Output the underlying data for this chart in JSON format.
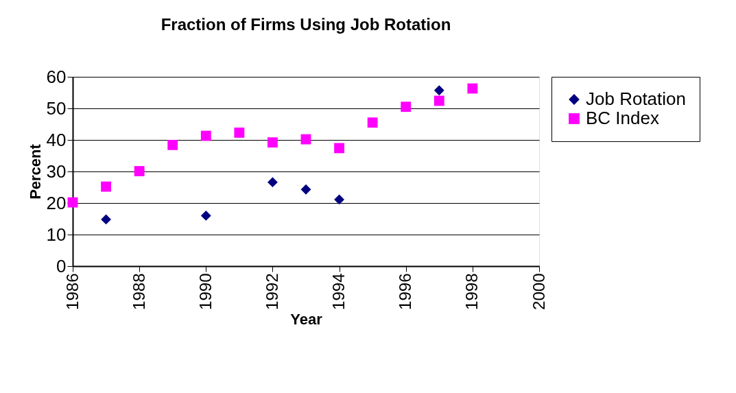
{
  "chart_data": {
    "type": "scatter",
    "title": "Fraction of Firms Using Job Rotation",
    "xlabel": "Year",
    "ylabel": "Percent",
    "series": [
      {
        "name": "Job Rotation",
        "color": "#000080",
        "marker": "diamond",
        "x": [
          1987,
          1990,
          1992,
          1993,
          1994,
          1997
        ],
        "values": [
          14.8,
          16.0,
          26.6,
          24.3,
          21.1,
          55.7
        ]
      },
      {
        "name": "BC Index",
        "color": "#ff00ff",
        "marker": "square",
        "x": [
          1986,
          1987,
          1988,
          1989,
          1990,
          1991,
          1992,
          1993,
          1994,
          1995,
          1996,
          1997,
          1998
        ],
        "values": [
          20.2,
          25.2,
          30.1,
          38.4,
          41.3,
          42.3,
          39.2,
          40.2,
          37.4,
          45.5,
          50.5,
          52.4,
          56.3
        ]
      }
    ],
    "xlim": [
      1986,
      2000
    ],
    "xticks": [
      1986,
      1988,
      1990,
      1992,
      1994,
      1996,
      1998,
      2000
    ],
    "ylim": [
      0,
      60
    ],
    "yticks": [
      0,
      10,
      20,
      30,
      40,
      50,
      60
    ],
    "grid": "y",
    "legend": "right"
  }
}
